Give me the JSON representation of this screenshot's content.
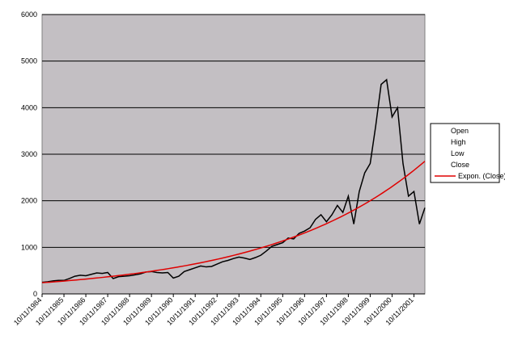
{
  "chart_data": {
    "type": "line",
    "categories": [
      "10/11/1984",
      null,
      null,
      null,
      "10/11/1985",
      null,
      null,
      null,
      "10/11/1986",
      null,
      null,
      null,
      "10/11/1987",
      null,
      null,
      null,
      "10/11/1988",
      null,
      null,
      null,
      "10/11/1989",
      null,
      null,
      null,
      "10/11/1990",
      null,
      null,
      null,
      "10/11/1991",
      null,
      null,
      null,
      "10/11/1992",
      null,
      null,
      null,
      "10/11/1993",
      null,
      null,
      null,
      "10/11/1994",
      null,
      null,
      null,
      "10/11/1995",
      null,
      null,
      null,
      "10/11/1996",
      null,
      null,
      null,
      "10/11/1997",
      null,
      null,
      null,
      "10/11/1998",
      null,
      null,
      null,
      "10/11/1999",
      null,
      null,
      null,
      "10/11/2000",
      null,
      null,
      null,
      "10/11/2001",
      null,
      null
    ],
    "series": [
      {
        "name": "Close",
        "color": "#000000",
        "values": [
          250,
          260,
          280,
          290,
          290,
          330,
          380,
          400,
          390,
          420,
          450,
          440,
          460,
          330,
          370,
          380,
          390,
          410,
          430,
          470,
          480,
          460,
          450,
          460,
          340,
          380,
          480,
          520,
          560,
          600,
          580,
          590,
          640,
          690,
          720,
          760,
          790,
          770,
          740,
          780,
          830,
          920,
          1020,
          1060,
          1100,
          1200,
          1180,
          1300,
          1350,
          1420,
          1600,
          1700,
          1550,
          1700,
          1900,
          1750,
          2100,
          1500,
          2200,
          2600,
          2800,
          3600,
          4500,
          4600,
          3800,
          4000,
          2800,
          2100,
          2200,
          1500,
          1850
        ]
      }
    ],
    "legend_only": [
      "Open",
      "High",
      "Low"
    ],
    "trendline": {
      "name": "Expon. (Close)",
      "color": "#e00000",
      "values": [
        240,
        2850
      ]
    },
    "ylim": [
      0,
      6000
    ],
    "yticks": [
      0,
      1000,
      2000,
      3000,
      4000,
      5000,
      6000
    ],
    "grid": true
  }
}
